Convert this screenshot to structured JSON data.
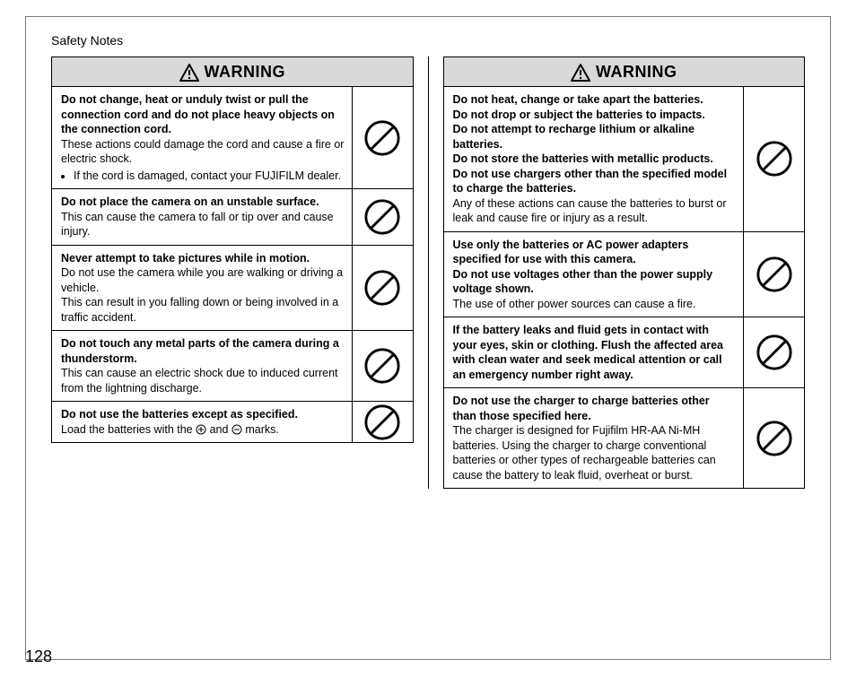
{
  "header": "Safety Notes",
  "page_number": "128",
  "warning_label": "WARNING",
  "colors": {
    "page_border": "#7a7a7a",
    "table_border": "#000000",
    "header_bg": "#d9d9d9",
    "text": "#000000",
    "background": "#ffffff"
  },
  "icons": {
    "prohibit_stroke": "#000000",
    "prohibit_stroke_width": 3
  },
  "left_column": {
    "header": "WARNING",
    "rows": [
      {
        "bold": "Do not change, heat or unduly twist or pull the connection cord and do not place heavy objects on the connection cord.",
        "body": "These actions could damage the cord and cause a fire or electric shock.",
        "bullets": [
          "If the cord is damaged, contact your FUJIFILM dealer."
        ],
        "icon": "prohibit"
      },
      {
        "bold": "Do not place the camera on an unstable surface.",
        "body": "This can cause the camera to fall or tip over and cause injury.",
        "icon": "prohibit"
      },
      {
        "bold": "Never attempt to take pictures while in motion.",
        "body": "Do not use the camera while you are walking or driving a vehicle.\nThis can result in you falling down or being involved in a traffic accident.",
        "icon": "prohibit"
      },
      {
        "bold": "Do not touch any metal parts of the camera during a thunderstorm.",
        "body": "This can cause an electric shock due to induced current from the lightning discharge.",
        "icon": "prohibit"
      },
      {
        "bold": "Do not use the batteries except as specified.",
        "body_with_symbols": "Load the batteries with the ⊕ and ⊖ marks.",
        "icon": "prohibit"
      }
    ]
  },
  "right_column": {
    "header": "WARNING",
    "rows": [
      {
        "bold": "Do not heat, change or take apart the batteries.\nDo not drop or subject the batteries to impacts.\nDo not attempt to recharge lithium or alkaline batteries.\nDo not store the batteries with metallic products.\nDo not use chargers other than the specified model to charge the batteries.",
        "body": "Any of these actions can cause the batteries to burst or leak and cause fire or injury as a result.",
        "icon": "prohibit"
      },
      {
        "bold": "Use only the batteries or AC power adapters specified for use with this camera.\nDo not use voltages other than the power supply voltage shown.",
        "body": "The use of other power sources can cause a fire.",
        "icon": "prohibit"
      },
      {
        "bold": "If the battery leaks and fluid gets in contact with your eyes, skin or clothing. Flush the affected area with clean water and seek medical attention or call an emergency number right away.",
        "body": "",
        "icon": "prohibit"
      },
      {
        "bold": "Do not use the charger to charge batteries other than those specified here.",
        "body": "The charger is designed for Fujifilm HR-AA Ni-MH batteries. Using the charger to charge conventional batteries or other types of rechargeable batteries can cause the battery to leak fluid, overheat or burst.",
        "icon": "prohibit"
      }
    ]
  }
}
